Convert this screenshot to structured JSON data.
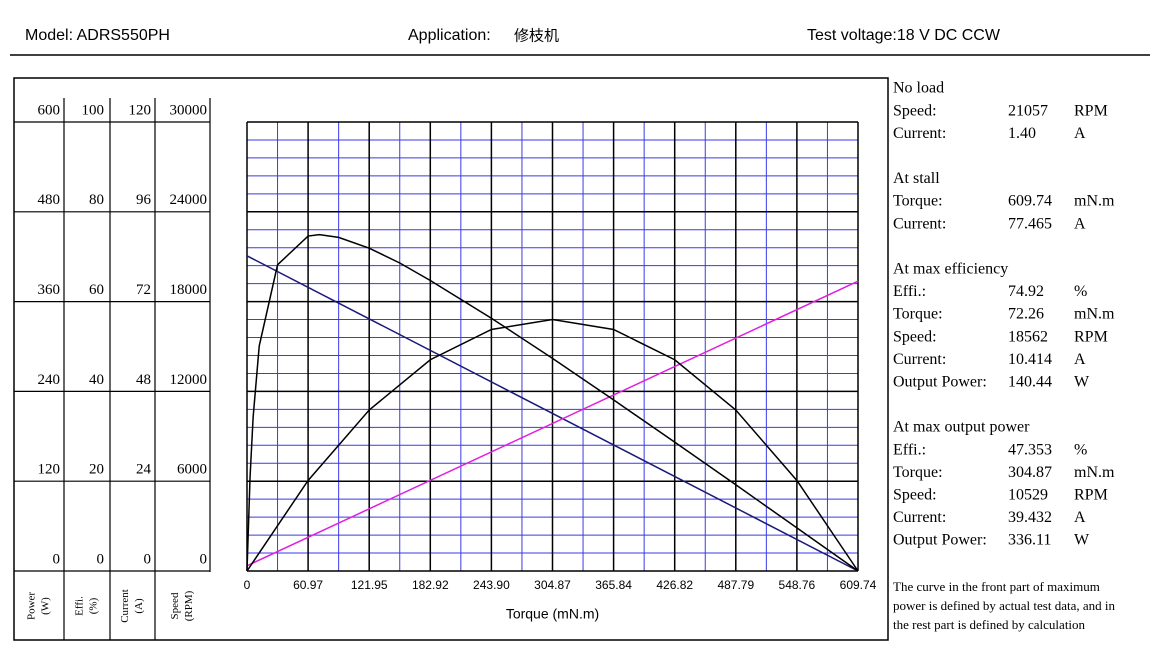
{
  "header": {
    "model": "Model: ADRS550PH",
    "application_label": "Application:",
    "application": "修枝机",
    "voltage": "Test voltage:18 V DC CCW"
  },
  "chart_data": {
    "type": "line",
    "xlabel": "Torque (mN.m)",
    "xlim": [
      0,
      609.74
    ],
    "xticks": [
      0,
      {
        "value": 60.97,
        "label": "60.97"
      },
      {
        "value": 121.95,
        "label": "121.95"
      },
      {
        "value": 182.92,
        "label": "182.92"
      },
      {
        "value": 243.9,
        "label": "243.90"
      },
      {
        "value": 304.87,
        "label": "304.87"
      },
      {
        "value": 365.84,
        "label": "365.84"
      },
      {
        "value": 426.82,
        "label": "426.82"
      },
      {
        "value": 487.79,
        "label": "487.79"
      },
      {
        "value": 548.76,
        "label": "548.76"
      },
      {
        "value": 609.74,
        "label": "609.74"
      }
    ],
    "grid": true,
    "minor_grid_color": "#3a3ae8",
    "y_axes": [
      {
        "label": [
          "Power",
          "(W)"
        ],
        "ylim": [
          0,
          600
        ],
        "yticks": [
          0,
          120,
          240,
          360,
          480,
          600
        ]
      },
      {
        "label": [
          "Effi.",
          "(%)"
        ],
        "ylim": [
          0,
          100
        ],
        "yticks": [
          0,
          20,
          40,
          60,
          80,
          100
        ]
      },
      {
        "label": [
          "Current",
          "(A)"
        ],
        "ylim": [
          0,
          120
        ],
        "yticks": [
          0,
          24,
          48,
          72,
          96,
          120
        ]
      },
      {
        "label": [
          "Speed",
          "(RPM)"
        ],
        "ylim": [
          0,
          30000
        ],
        "yticks": [
          0,
          6000,
          12000,
          18000,
          24000,
          30000
        ]
      }
    ],
    "series": [
      {
        "axis": 3,
        "color": "#1a1a7a",
        "x": [
          0,
          609.74
        ],
        "values": [
          21057,
          0
        ]
      },
      {
        "axis": 2,
        "color": "#e020e0",
        "x": [
          0,
          609.74
        ],
        "values": [
          1.4,
          77.465
        ]
      },
      {
        "axis": 0,
        "color": "#000000",
        "x": [
          0,
          60.97,
          121.95,
          182.92,
          243.9,
          304.87,
          365.84,
          426.82,
          487.79,
          548.76,
          609.74
        ],
        "values": [
          0,
          121.0,
          215.1,
          282.3,
          322.7,
          336.11,
          322.7,
          282.3,
          215.1,
          121.0,
          0
        ]
      },
      {
        "axis": 1,
        "color": "#000000",
        "x": [
          0,
          3.05,
          6.1,
          12.19,
          30.49,
          60.97,
          72.26,
          91.46,
          121.95,
          152.44,
          182.92,
          243.9,
          304.87,
          365.84,
          426.82,
          487.79,
          548.76,
          609.74
        ],
        "values": [
          0,
          20.9,
          34.2,
          50.1,
          68.2,
          74.6,
          74.92,
          74.3,
          71.9,
          68.6,
          64.7,
          56.3,
          47.353,
          38.1,
          28.7,
          19.2,
          9.6,
          0
        ]
      }
    ]
  },
  "specs": [
    {
      "title": "No load",
      "rows": [
        [
          "Speed:",
          "21057",
          "RPM"
        ],
        [
          "Current:",
          "1.40",
          "A"
        ]
      ]
    },
    {
      "title": "At stall",
      "rows": [
        [
          "Torque:",
          "609.74",
          "mN.m"
        ],
        [
          "Current:",
          "77.465",
          "A"
        ]
      ]
    },
    {
      "title": "At max efficiency",
      "rows": [
        [
          "Effi.:",
          "74.92",
          "%"
        ],
        [
          "Torque:",
          "72.26",
          "mN.m"
        ],
        [
          "Speed:",
          "18562",
          "RPM"
        ],
        [
          "Current:",
          "10.414",
          "A"
        ],
        [
          "Output Power:",
          "140.44",
          "W"
        ]
      ]
    },
    {
      "title": "At max output power",
      "rows": [
        [
          "Effi.:",
          "47.353",
          "%"
        ],
        [
          "Torque:",
          "304.87",
          "mN.m"
        ],
        [
          "Speed:",
          "10529",
          "RPM"
        ],
        [
          "Current:",
          "39.432",
          "A"
        ],
        [
          "Output Power:",
          "336.11",
          "W"
        ]
      ]
    }
  ],
  "note": [
    "The curve in the front part of maximum",
    "power is defined by actual test data, and in",
    "the rest part is defined by calculation"
  ]
}
